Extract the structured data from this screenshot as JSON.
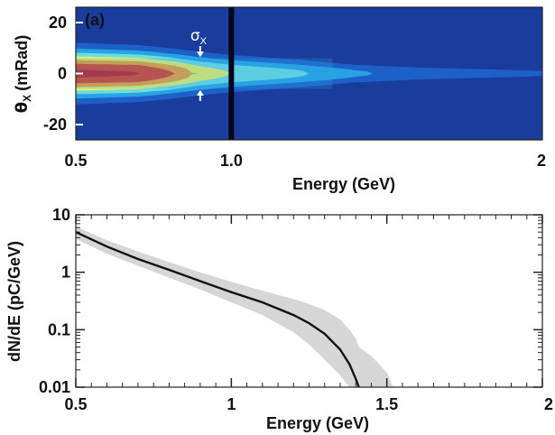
{
  "chart_data": [
    {
      "type": "heatmap",
      "panel_label": "(a)",
      "xlabel": "Energy (GeV)",
      "ylabel_symbol": "θ",
      "ylabel_sub": "X",
      "ylabel_unit": "(mRad)",
      "xlim": [
        0.5,
        2.0
      ],
      "ylim": [
        -26,
        26
      ],
      "xticks": [
        {
          "value": 0.5,
          "label": "0.5"
        },
        {
          "value": 1.0,
          "label": "1.0"
        },
        {
          "value": 2.0,
          "label": "2"
        }
      ],
      "yticks": [
        {
          "value": 20,
          "label": "20"
        },
        {
          "value": 0,
          "label": "0"
        },
        {
          "value": -20,
          "label": "-20"
        }
      ],
      "annotation": {
        "symbol": "σ",
        "sub": "X",
        "x": 0.9,
        "y_top": 6.5,
        "y_bottom": -6.5
      },
      "colormap": [
        "#1a3c9c",
        "#1e62c9",
        "#2aa5e6",
        "#6fe0e0",
        "#f2f25a",
        "#f59a2a",
        "#e3351e",
        "#c8161a"
      ],
      "profile": [
        {
          "energy": 0.5,
          "peak": 1.0,
          "width": 7.0
        },
        {
          "energy": 0.7,
          "peak": 0.98,
          "width": 6.5
        },
        {
          "energy": 0.8,
          "peak": 0.85,
          "width": 6.0
        },
        {
          "energy": 0.9,
          "peak": 0.65,
          "width": 5.5
        },
        {
          "energy": 1.0,
          "peak": 0.55,
          "width": 5.0
        },
        {
          "energy": 1.1,
          "peak": 0.5,
          "width": 4.5
        },
        {
          "energy": 1.2,
          "peak": 0.45,
          "width": 4.0
        },
        {
          "energy": 1.3,
          "peak": 0.38,
          "width": 3.5
        },
        {
          "energy": 1.4,
          "peak": 0.3,
          "width": 3.0
        },
        {
          "energy": 1.6,
          "peak": 0.22,
          "width": 2.5
        },
        {
          "energy": 2.0,
          "peak": 0.15,
          "width": 2.0
        }
      ],
      "dark_line_energy": 1.0
    },
    {
      "type": "line",
      "xlabel": "Energy (GeV)",
      "ylabel": "dN/dE (pC/GeV)",
      "xlim": [
        0.5,
        2.0
      ],
      "ylim": [
        0.01,
        10
      ],
      "yscale": "log",
      "xticks": [
        {
          "value": 0.5,
          "label": "0.5"
        },
        {
          "value": 1.0,
          "label": "1"
        },
        {
          "value": 1.5,
          "label": "1.5"
        },
        {
          "value": 2.0,
          "label": "2"
        }
      ],
      "yticks": [
        {
          "value": 10,
          "label": "10"
        },
        {
          "value": 1,
          "label": "1"
        },
        {
          "value": 0.1,
          "label": "0.1"
        },
        {
          "value": 0.01,
          "label": "0.01"
        }
      ],
      "series": [
        {
          "x": [
            0.5,
            0.6,
            0.7,
            0.8,
            0.9,
            1.0,
            1.1,
            1.2,
            1.25,
            1.3,
            1.35,
            1.38,
            1.4,
            1.41
          ],
          "y": [
            5.0,
            2.8,
            1.7,
            1.1,
            0.7,
            0.45,
            0.3,
            0.18,
            0.13,
            0.085,
            0.045,
            0.025,
            0.014,
            0.01
          ],
          "band_low": [
            3.8,
            2.1,
            1.3,
            0.8,
            0.5,
            0.3,
            0.18,
            0.09,
            0.055,
            0.03,
            0.016,
            0.01,
            0.01,
            0.01
          ],
          "band_high": [
            6.3,
            3.6,
            2.3,
            1.5,
            1.0,
            0.68,
            0.48,
            0.34,
            0.28,
            0.22,
            0.15,
            0.1,
            0.07,
            0.05
          ]
        }
      ],
      "band_high_tail": {
        "x": [
          1.45,
          1.5,
          1.52
        ],
        "y": [
          0.035,
          0.018,
          0.01
        ]
      }
    }
  ]
}
